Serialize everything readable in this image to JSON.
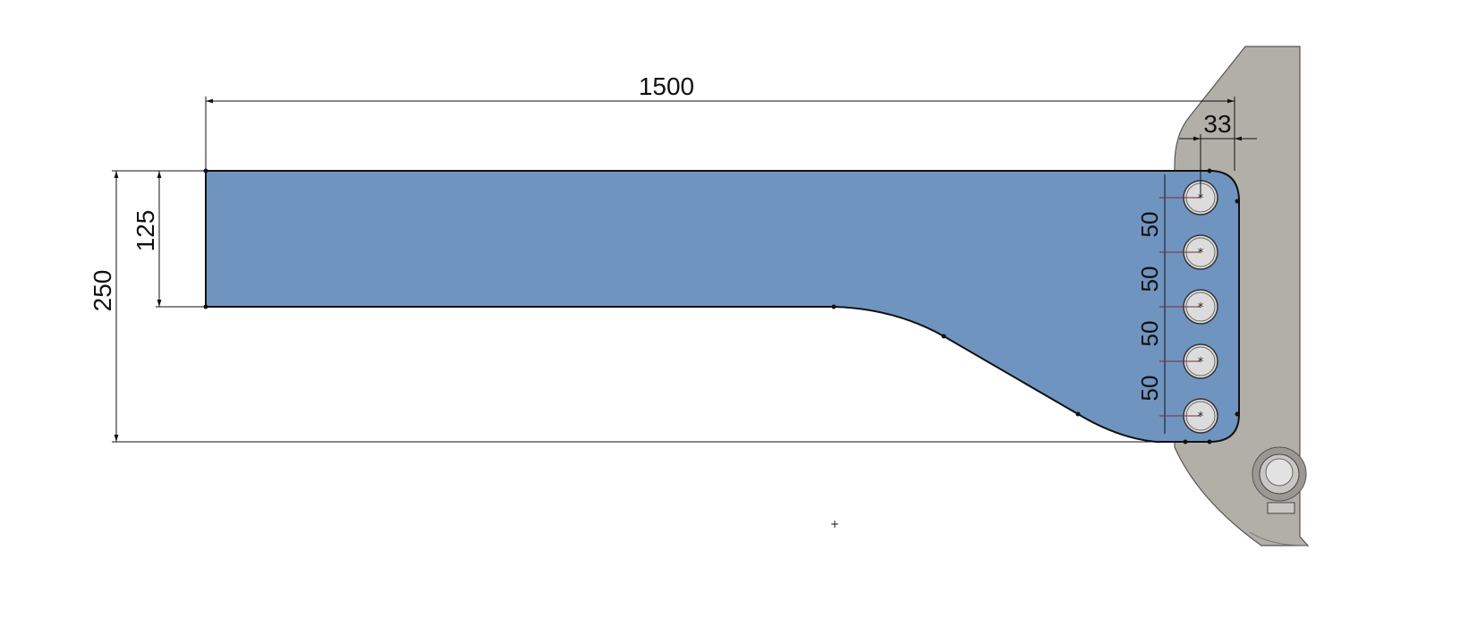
{
  "colors": {
    "part": "#7094c0",
    "bracket": "#b2afa9",
    "hole": "#dcdcdc",
    "dimension_line": "#111111",
    "hole_dimension_line": "#7a2b3b"
  },
  "dimensions": {
    "overall_length": "1500",
    "overall_height": "250",
    "arm_height": "125",
    "hole_offset": "33",
    "hole_spacing": [
      "50",
      "50",
      "50",
      "50"
    ]
  },
  "holes": {
    "count": 5
  }
}
